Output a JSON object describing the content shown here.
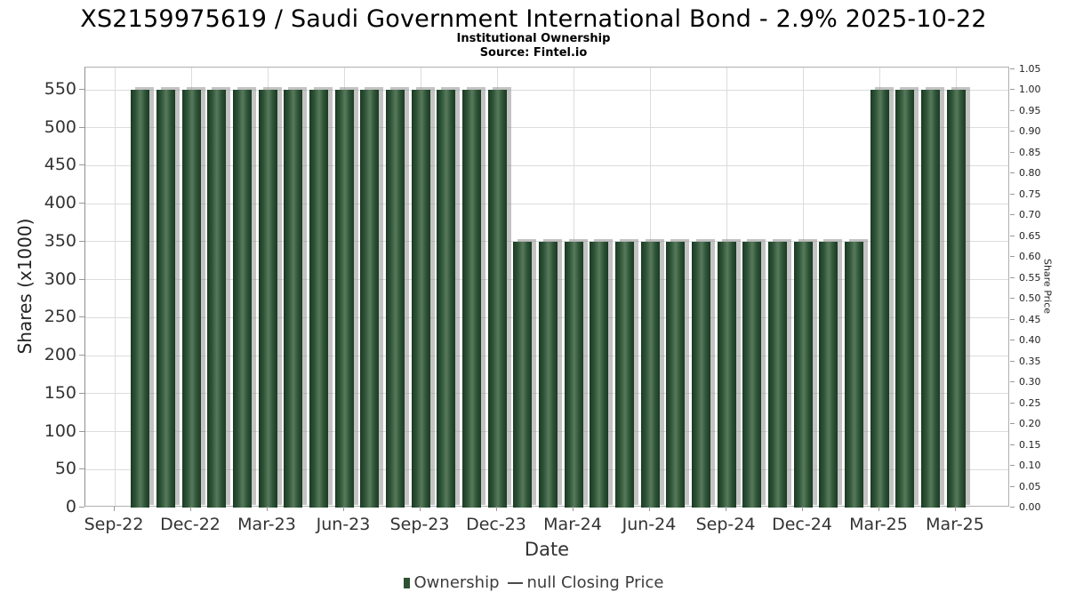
{
  "chart_data": {
    "type": "bar",
    "title": "XS2159975619 / Saudi Government International Bond - 2.9% 2025-10-22",
    "subtitle": "Institutional Ownership",
    "source": "Source: Fintel.io",
    "xlabel": "Date",
    "ylabel_left": "Shares (x1000)",
    "ylabel_right": "Share Price",
    "x_tick_labels": [
      "Sep-22",
      "Dec-22",
      "Mar-23",
      "Jun-23",
      "Sep-23",
      "Dec-23",
      "Mar-24",
      "Jun-24",
      "Sep-24",
      "Dec-24",
      "Mar-25",
      "Mar-25"
    ],
    "left_axis": {
      "min": 0,
      "max": 578,
      "tick_start": 0,
      "tick_end": 550,
      "tick_step": 50
    },
    "right_axis": {
      "min": 0.0,
      "max": 1.05,
      "tick_step": 0.05
    },
    "grid": true,
    "legend_position": "bottom-center",
    "series": [
      {
        "name": "Ownership",
        "type": "bar",
        "color": "#2d5134",
        "values": [
          550,
          550,
          550,
          550,
          550,
          550,
          550,
          550,
          550,
          550,
          550,
          550,
          550,
          550,
          550,
          350,
          350,
          350,
          350,
          350,
          350,
          350,
          350,
          350,
          350,
          350,
          350,
          350,
          350,
          550,
          550,
          550,
          550
        ]
      },
      {
        "name": "null Closing Price",
        "type": "line",
        "color": "#4a4a4a",
        "values": []
      }
    ],
    "legend": [
      {
        "label": "Ownership",
        "marker": "square",
        "color": "#2d5134"
      },
      {
        "label": "null Closing Price",
        "marker": "line",
        "color": "#4a4a4a"
      }
    ]
  },
  "theme": {
    "bar_dark": "#1b3a23",
    "bar_mid": "#2e5437",
    "bar_light": "#587a5c",
    "bar_shadow": "rgba(145,145,145,0.55)",
    "grid_color": "#dcdcdc",
    "spine_color": "#b0b0b0",
    "tick_color": "#999999",
    "text_color": "#333333",
    "title_color": "#000000"
  }
}
